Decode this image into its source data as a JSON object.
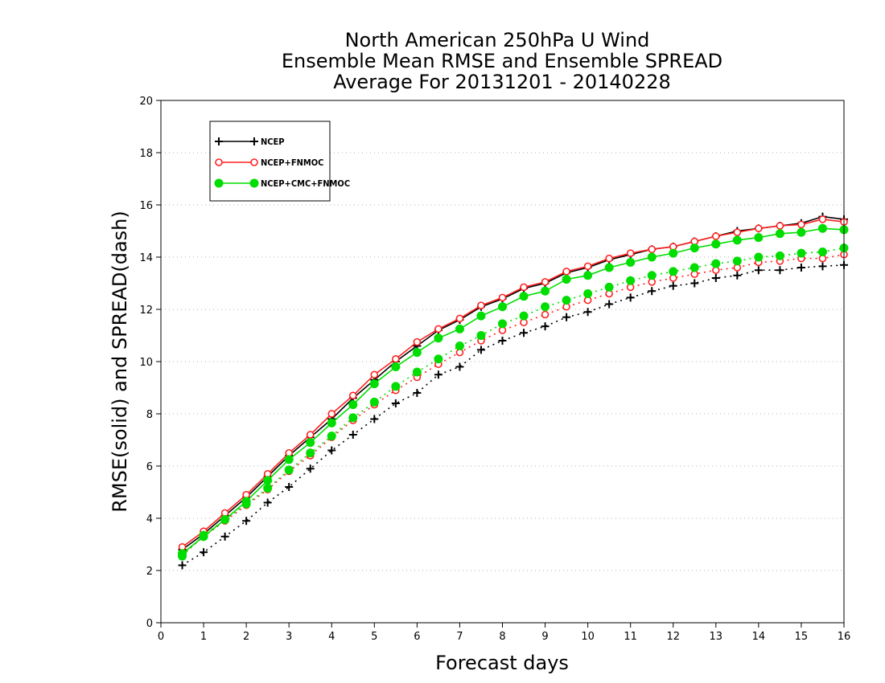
{
  "chart_data": {
    "type": "line",
    "title": [
      "North American 250hPa U Wind",
      "Ensemble Mean RMSE and Ensemble SPREAD",
      "Average For 20131201 - 20140228"
    ],
    "xlabel": "Forecast days",
    "ylabel": "RMSE(solid) and SPREAD(dash)",
    "xlim": [
      0,
      16
    ],
    "ylim": [
      0,
      20
    ],
    "xticks": [
      0,
      1,
      2,
      3,
      4,
      5,
      6,
      7,
      8,
      9,
      10,
      11,
      12,
      13,
      14,
      15,
      16
    ],
    "yticks": [
      0,
      2,
      4,
      6,
      8,
      10,
      12,
      14,
      16,
      18,
      20
    ],
    "grid": "dotted horizontal",
    "legend_position": "top-left",
    "x": [
      0.5,
      1,
      1.5,
      2,
      2.5,
      3,
      3.5,
      4,
      4.5,
      5,
      5.5,
      6,
      6.5,
      7,
      7.5,
      8,
      8.5,
      9,
      9.5,
      10,
      10.5,
      11,
      11.5,
      12,
      12.5,
      13,
      13.5,
      14,
      14.5,
      15,
      15.5,
      16
    ],
    "series": [
      {
        "name": "NCEP",
        "color": "#000000",
        "marker": "plus",
        "rmse": [
          2.8,
          3.4,
          4.1,
          4.8,
          5.6,
          6.4,
          7.1,
          7.8,
          8.6,
          9.3,
          10.0,
          10.6,
          11.2,
          11.6,
          12.1,
          12.4,
          12.8,
          13.0,
          13.4,
          13.6,
          13.9,
          14.1,
          14.3,
          14.4,
          14.6,
          14.8,
          15.0,
          15.1,
          15.2,
          15.3,
          15.55,
          15.45
        ],
        "spread": [
          2.2,
          2.7,
          3.3,
          3.9,
          4.6,
          5.2,
          5.9,
          6.6,
          7.2,
          7.8,
          8.4,
          8.8,
          9.5,
          9.8,
          10.45,
          10.8,
          11.1,
          11.35,
          11.7,
          11.9,
          12.2,
          12.45,
          12.7,
          12.9,
          13.0,
          13.2,
          13.3,
          13.5,
          13.5,
          13.6,
          13.65,
          13.7
        ]
      },
      {
        "name": "NCEP+FNMOC",
        "color": "#ff2020",
        "marker": "open-circle",
        "rmse": [
          2.9,
          3.5,
          4.2,
          4.9,
          5.7,
          6.5,
          7.2,
          8.0,
          8.7,
          9.5,
          10.1,
          10.75,
          11.25,
          11.65,
          12.15,
          12.45,
          12.85,
          13.05,
          13.45,
          13.65,
          13.95,
          14.15,
          14.3,
          14.4,
          14.6,
          14.8,
          14.95,
          15.1,
          15.2,
          15.25,
          15.45,
          15.35
        ],
        "spread": [
          2.6,
          3.3,
          3.9,
          4.5,
          5.1,
          5.8,
          6.4,
          7.1,
          7.75,
          8.35,
          8.9,
          9.4,
          9.9,
          10.35,
          10.8,
          11.2,
          11.5,
          11.8,
          12.1,
          12.35,
          12.6,
          12.85,
          13.05,
          13.2,
          13.35,
          13.5,
          13.6,
          13.8,
          13.85,
          13.95,
          13.95,
          14.1
        ]
      },
      {
        "name": "NCEP+CMC+FNMOC",
        "color": "#00dd00",
        "marker": "filled-circle",
        "rmse": [
          2.65,
          3.3,
          3.95,
          4.65,
          5.45,
          6.25,
          6.9,
          7.65,
          8.35,
          9.15,
          9.8,
          10.35,
          10.9,
          11.25,
          11.75,
          12.1,
          12.5,
          12.7,
          13.15,
          13.3,
          13.6,
          13.8,
          14.0,
          14.15,
          14.35,
          14.5,
          14.65,
          14.75,
          14.9,
          14.95,
          15.1,
          15.05
        ],
        "spread": [
          2.55,
          3.35,
          3.95,
          4.55,
          5.15,
          5.85,
          6.5,
          7.15,
          7.85,
          8.45,
          9.05,
          9.6,
          10.1,
          10.6,
          11.0,
          11.45,
          11.75,
          12.1,
          12.35,
          12.6,
          12.85,
          13.1,
          13.3,
          13.45,
          13.6,
          13.75,
          13.85,
          14.0,
          14.05,
          14.15,
          14.2,
          14.35
        ]
      }
    ]
  }
}
